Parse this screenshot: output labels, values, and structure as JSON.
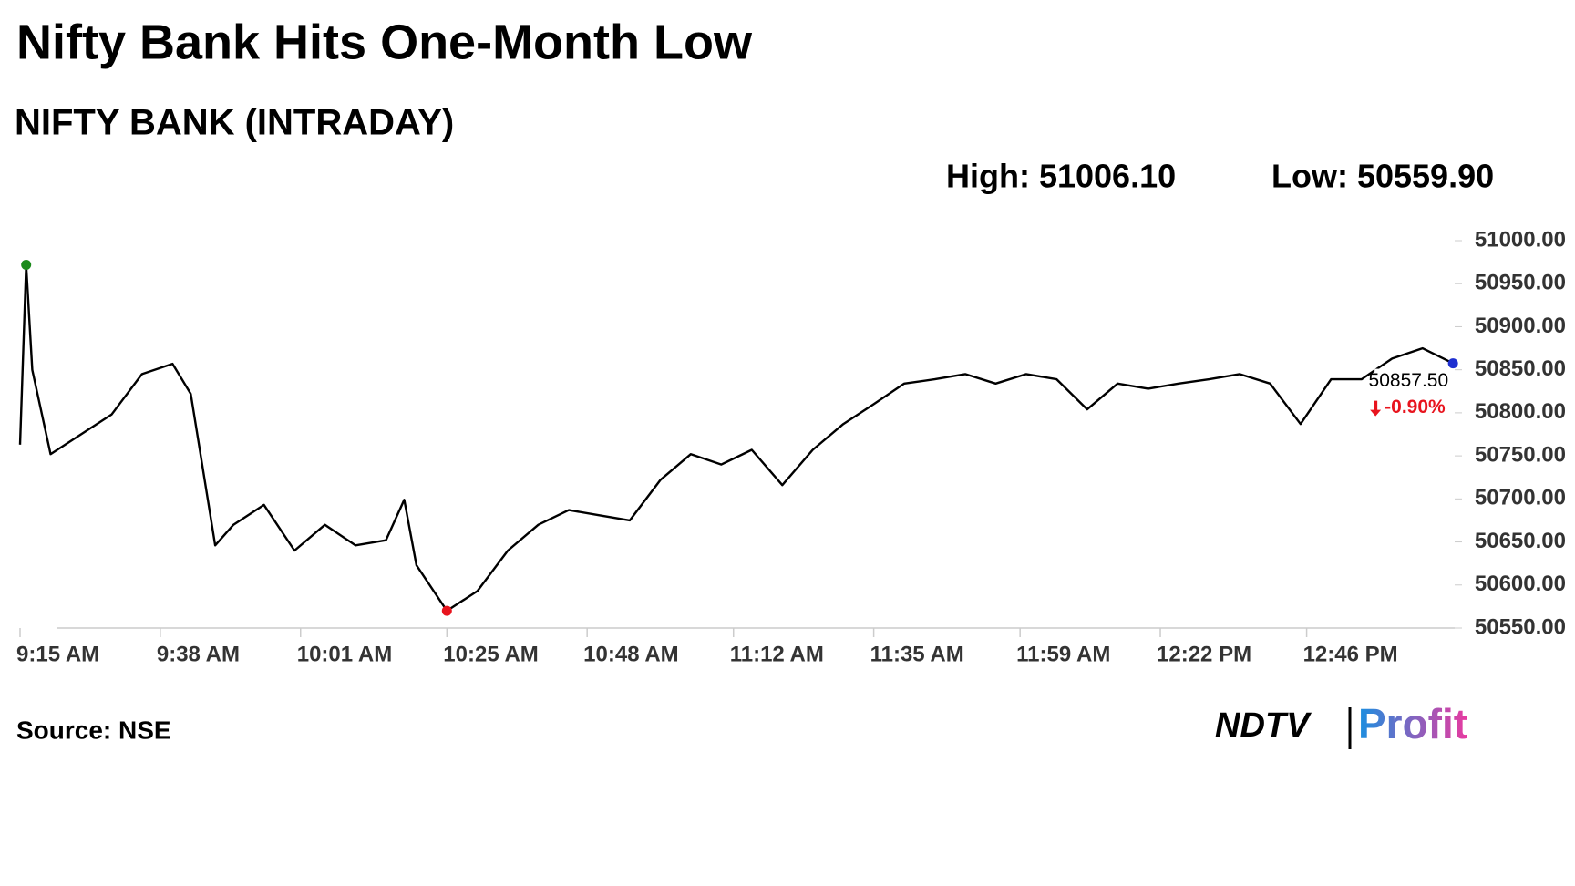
{
  "chart_data": {
    "type": "line",
    "title": "Nifty Bank Hits One-Month Low",
    "subtitle": "NIFTY BANK (INTRADAY)",
    "high_label": "High: 51006.10",
    "low_label": "Low: 50559.90",
    "source": "Source: NSE",
    "logo": {
      "left": "NDTV",
      "right": "Profit"
    },
    "last_price_label": "50857.50",
    "change_label": "-0.90%",
    "color": "#000000",
    "marker_colors": {
      "high": "#1a8a1a",
      "low": "#e8141e",
      "last": "#1e2fd0"
    },
    "x": [
      "9:15 AM",
      "9:16 AM",
      "9:17 AM",
      "9:20 AM",
      "9:25 AM",
      "9:30 AM",
      "9:35 AM",
      "9:40 AM",
      "9:43 AM",
      "9:47 AM",
      "9:50 AM",
      "9:55 AM",
      "10:00 AM",
      "10:05 AM",
      "10:10 AM",
      "10:15 AM",
      "10:18 AM",
      "10:20 AM",
      "10:25 AM",
      "10:30 AM",
      "10:35 AM",
      "10:40 AM",
      "10:45 AM",
      "10:50 AM",
      "10:55 AM",
      "11:00 AM",
      "11:05 AM",
      "11:10 AM",
      "11:15 AM",
      "11:20 AM",
      "11:25 AM",
      "11:30 AM",
      "11:35 AM",
      "11:40 AM",
      "11:45 AM",
      "11:50 AM",
      "11:55 AM",
      "12:00 PM",
      "12:05 PM",
      "12:10 PM",
      "12:15 PM",
      "12:20 PM",
      "12:25 PM",
      "12:30 PM",
      "12:35 PM",
      "12:40 PM",
      "12:45 PM",
      "12:50 PM",
      "12:55 PM",
      "1:00 PM",
      "1:05 PM",
      "1:10 PM"
    ],
    "values": [
      50763,
      50972,
      50850,
      50752,
      50775,
      50798,
      50845,
      50857,
      50822,
      50646,
      50670,
      50693,
      50640,
      50670,
      50646,
      50652,
      50699,
      50623,
      50570,
      50593,
      50640,
      50670,
      50687,
      50681,
      50675,
      50722,
      50752,
      50740,
      50757,
      50716,
      50757,
      50787,
      50810,
      50834,
      50839,
      50845,
      50834,
      50845,
      50839,
      50804,
      50834,
      50828,
      50834,
      50839,
      50845,
      50834,
      50787,
      50839,
      50839,
      50863,
      50875,
      50857.5
    ],
    "xticks": [
      "9:15 AM",
      "9:38 AM",
      "10:01 AM",
      "10:25 AM",
      "10:48 AM",
      "11:12 AM",
      "11:35 AM",
      "11:59 AM",
      "12:22 PM",
      "12:46 PM"
    ],
    "ylim": [
      50550,
      51000
    ],
    "yticks": [
      {
        "value": 50550,
        "label": "50550.00"
      },
      {
        "value": 50600,
        "label": "50600.00"
      },
      {
        "value": 50650,
        "label": "50650.00"
      },
      {
        "value": 50700,
        "label": "50700.00"
      },
      {
        "value": 50750,
        "label": "50750.00"
      },
      {
        "value": 50800,
        "label": "50800.00"
      },
      {
        "value": 50850,
        "label": "50850.00"
      },
      {
        "value": 50900,
        "label": "50900.00"
      },
      {
        "value": 50950,
        "label": "50950.00"
      },
      {
        "value": 51000,
        "label": "51000.00"
      }
    ]
  }
}
